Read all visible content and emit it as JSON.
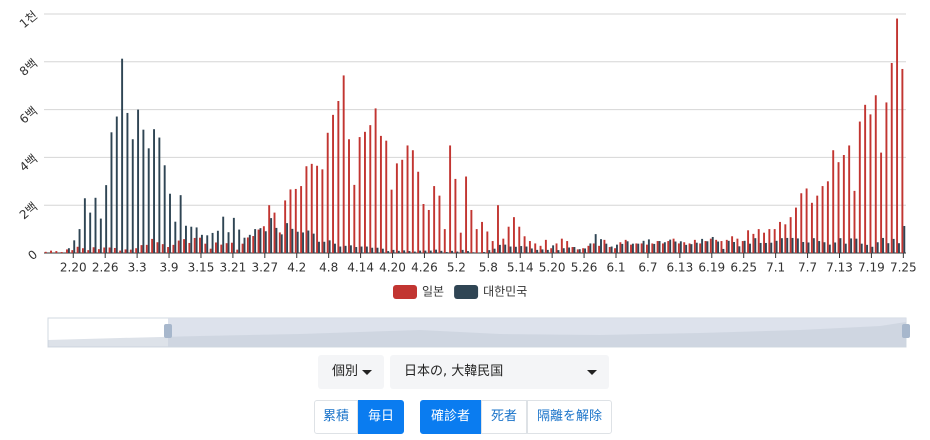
{
  "chart_data": {
    "type": "bar",
    "categories": [
      null,
      null,
      null,
      null,
      null,
      "2.20",
      null,
      null,
      null,
      null,
      null,
      "2.26",
      null,
      null,
      null,
      null,
      null,
      "3.3",
      null,
      null,
      null,
      null,
      null,
      "3.9",
      null,
      null,
      null,
      null,
      null,
      "3.15",
      null,
      null,
      null,
      null,
      null,
      "3.21",
      null,
      null,
      null,
      null,
      null,
      "3.27",
      null,
      null,
      null,
      null,
      null,
      "4.2",
      null,
      null,
      null,
      null,
      null,
      "4.8",
      null,
      null,
      null,
      null,
      null,
      "4.14",
      null,
      null,
      null,
      null,
      null,
      "4.20",
      null,
      null,
      null,
      null,
      null,
      "4.26",
      null,
      null,
      null,
      null,
      null,
      "5.2",
      null,
      null,
      null,
      null,
      null,
      "5.8",
      null,
      null,
      null,
      null,
      null,
      "5.14",
      null,
      null,
      null,
      null,
      null,
      "5.20",
      null,
      null,
      null,
      null,
      null,
      "5.26",
      null,
      null,
      null,
      null,
      null,
      "6.1",
      null,
      null,
      null,
      null,
      null,
      "6.7",
      null,
      null,
      null,
      null,
      null,
      "6.13",
      null,
      null,
      null,
      null,
      null,
      "6.19",
      null,
      null,
      null,
      null,
      null,
      "6.25",
      null,
      null,
      null,
      null,
      null,
      "7.1",
      null,
      null,
      null,
      null,
      null,
      "7.7",
      null,
      null,
      null,
      null,
      null,
      "7.13",
      null,
      null,
      null,
      null,
      null,
      "7.19",
      null,
      null,
      null,
      null,
      null,
      "7.25"
    ],
    "series": [
      {
        "name": "일본",
        "color": "#c23531",
        "values": [
          5,
          10,
          8,
          4,
          15,
          12,
          26,
          20,
          12,
          24,
          16,
          23,
          23,
          21,
          10,
          15,
          14,
          20,
          33,
          34,
          59,
          45,
          37,
          25,
          34,
          52,
          58,
          42,
          63,
          64,
          39,
          18,
          44,
          35,
          41,
          43,
          14,
          39,
          65,
          71,
          98,
          112,
          200,
          169,
          86,
          220,
          266,
          268,
          280,
          363,
          373,
          365,
          350,
          503,
          578,
          636,
          743,
          476,
          285,
          485,
          507,
          535,
          605,
          490,
          470,
          265,
          375,
          390,
          450,
          430,
          340,
          205,
          180,
          280,
          240,
          100,
          450,
          310,
          85,
          320,
          180,
          100,
          130,
          90,
          50,
          200,
          60,
          110,
          150,
          110,
          70,
          50,
          40,
          30,
          55,
          20,
          40,
          60,
          50,
          25,
          15,
          20,
          30,
          40,
          30,
          55,
          25,
          20,
          45,
          55,
          35,
          40,
          40,
          35,
          40,
          50,
          40,
          50,
          60,
          40,
          45,
          40,
          55,
          40,
          50,
          60,
          55,
          50,
          55,
          70,
          60,
          50,
          95,
          80,
          100,
          85,
          100,
          100,
          130,
          120,
          150,
          190,
          250,
          270,
          210,
          240,
          280,
          300,
          430,
          380,
          410,
          450,
          260,
          550,
          620,
          580,
          660,
          420,
          630,
          795,
          981,
          770
        ]
      },
      {
        "name": "대한민국",
        "color": "#2f4554",
        "values": [
          0,
          0,
          1,
          1,
          20,
          53,
          100,
          229,
          169,
          231,
          144,
          284,
          505,
          571,
          813,
          586,
          476,
          600,
          516,
          438,
          518,
          483,
          367,
          248,
          131,
          242,
          114,
          110,
          107,
          76,
          74,
          84,
          93,
          152,
          87,
          147,
          98,
          64,
          76,
          100,
          104,
          91,
          146,
          105,
          78,
          125,
          101,
          89,
          86,
          94,
          81,
          47,
          47,
          53,
          39,
          27,
          30,
          32,
          25,
          27,
          27,
          22,
          22,
          18,
          8,
          13,
          9,
          11,
          8,
          6,
          10,
          10,
          10,
          14,
          9,
          4,
          9,
          6,
          13,
          8,
          3,
          2,
          4,
          12,
          18,
          34,
          35,
          27,
          26,
          29,
          27,
          19,
          13,
          15,
          13,
          32,
          12,
          20,
          23,
          25,
          16,
          19,
          40,
          79,
          58,
          39,
          27,
          35,
          38,
          49,
          39,
          39,
          51,
          57,
          38,
          50,
          45,
          56,
          48,
          49,
          34,
          37,
          43,
          59,
          49,
          67,
          48,
          17,
          51,
          46,
          28,
          51,
          39,
          62,
          42,
          42,
          43,
          51,
          62,
          63,
          63,
          61,
          46,
          44,
          62,
          50,
          45,
          35,
          44,
          62,
          39,
          61,
          60,
          39,
          34,
          26,
          45,
          63,
          41,
          59,
          41,
          113
        ]
      }
    ],
    "ylim": [
      0,
      1000
    ],
    "yticks": [
      0,
      {
        "value": 200,
        "label": "2백"
      },
      {
        "value": 400,
        "label": "4백"
      },
      {
        "value": 600,
        "label": "6백"
      },
      {
        "value": 800,
        "label": "8백"
      },
      {
        "value": 1000,
        "label": "1천"
      }
    ],
    "grid": true,
    "legend": "bottom"
  },
  "controls": {
    "mode_select": "個別",
    "country_select": "日本の, 大韓民国",
    "buttons_a": [
      "累積",
      "毎日"
    ],
    "buttons_b": [
      "確診者",
      "死者",
      "隔離を解除"
    ]
  }
}
